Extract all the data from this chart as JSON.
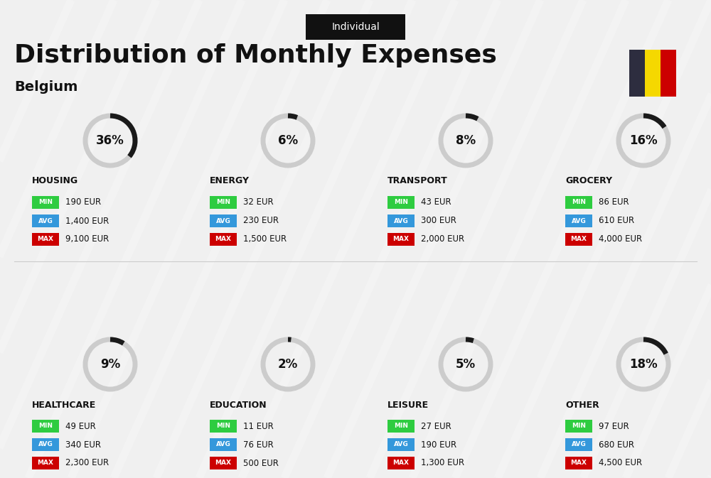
{
  "title": "Distribution of Monthly Expenses",
  "subtitle": "Belgium",
  "tag": "Individual",
  "bg_color": "#f0f0f0",
  "flag_colors": [
    "#2d2d3f",
    "#f5d800",
    "#cc0000"
  ],
  "categories": [
    {
      "name": "HOUSING",
      "pct": 36,
      "min": "190 EUR",
      "avg": "1,400 EUR",
      "max": "9,100 EUR",
      "col": 0,
      "row": 0
    },
    {
      "name": "ENERGY",
      "pct": 6,
      "min": "32 EUR",
      "avg": "230 EUR",
      "max": "1,500 EUR",
      "col": 1,
      "row": 0
    },
    {
      "name": "TRANSPORT",
      "pct": 8,
      "min": "43 EUR",
      "avg": "300 EUR",
      "max": "2,000 EUR",
      "col": 2,
      "row": 0
    },
    {
      "name": "GROCERY",
      "pct": 16,
      "min": "86 EUR",
      "avg": "610 EUR",
      "max": "4,000 EUR",
      "col": 3,
      "row": 0
    },
    {
      "name": "HEALTHCARE",
      "pct": 9,
      "min": "49 EUR",
      "avg": "340 EUR",
      "max": "2,300 EUR",
      "col": 0,
      "row": 1
    },
    {
      "name": "EDUCATION",
      "pct": 2,
      "min": "11 EUR",
      "avg": "76 EUR",
      "max": "500 EUR",
      "col": 1,
      "row": 1
    },
    {
      "name": "LEISURE",
      "pct": 5,
      "min": "27 EUR",
      "avg": "190 EUR",
      "max": "1,300 EUR",
      "col": 2,
      "row": 1
    },
    {
      "name": "OTHER",
      "pct": 18,
      "min": "97 EUR",
      "avg": "680 EUR",
      "max": "4,500 EUR",
      "col": 3,
      "row": 1
    }
  ],
  "min_color": "#2ecc40",
  "avg_color": "#3498db",
  "max_color": "#cc0000",
  "label_color": "#ffffff",
  "text_color": "#111111",
  "circle_color_filled": "#1a1a1a",
  "circle_color_empty": "#cccccc"
}
